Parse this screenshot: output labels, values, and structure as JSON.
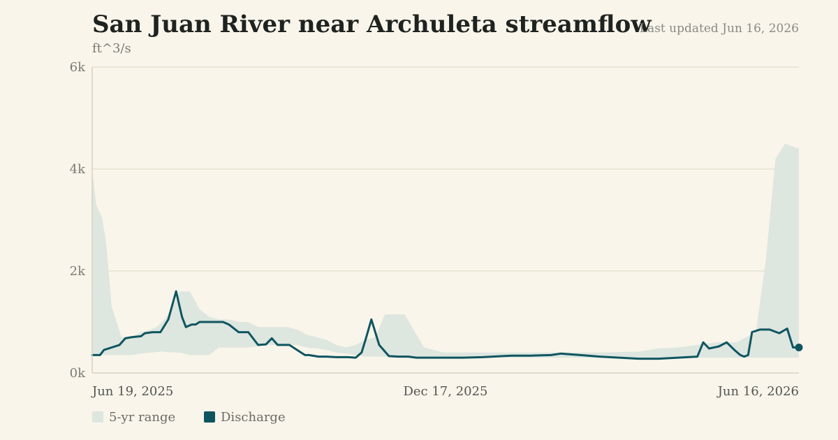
{
  "header": {
    "title": "San Juan River near Archuleta streamflow",
    "updated": "Last updated Jun 16, 2026",
    "unit": "ft^3/s"
  },
  "legend": {
    "range_label": "5-yr range",
    "discharge_label": "Discharge"
  },
  "colors": {
    "background": "#f9f5eb",
    "range_fill": "#dde6df",
    "discharge_line": "#0f5560",
    "grid": "#e7e1d0"
  },
  "chart_data": {
    "type": "area",
    "title": "San Juan River near Archuleta streamflow",
    "ylabel": "ft^3/s",
    "xlabel": "",
    "ylim": [
      0,
      6000
    ],
    "yticks": [
      0,
      2000,
      4000,
      6000
    ],
    "ytick_labels": [
      "0k",
      "2k",
      "4k",
      "6k"
    ],
    "xlim": [
      0,
      362
    ],
    "xticks": [
      0,
      181,
      362
    ],
    "xtick_labels": [
      "Jun 19, 2025",
      "Dec 17, 2025",
      "Jun 16, 2026"
    ],
    "grid": true,
    "legend_position": "bottom-left",
    "series": [
      {
        "name": "5-yr range",
        "type": "band",
        "x": [
          0,
          2,
          5,
          7,
          10,
          15,
          20,
          25,
          30,
          33,
          36,
          40,
          45,
          50,
          55,
          60,
          65,
          70,
          75,
          80,
          85,
          90,
          95,
          100,
          105,
          110,
          115,
          120,
          125,
          130,
          135,
          140,
          145,
          150,
          155,
          160,
          170,
          180,
          200,
          230,
          260,
          280,
          290,
          300,
          310,
          320,
          325,
          330,
          335,
          340,
          345,
          350,
          355,
          360,
          362
        ],
        "low": [
          350,
          350,
          350,
          350,
          350,
          350,
          350,
          380,
          400,
          410,
          420,
          400,
          400,
          350,
          350,
          350,
          500,
          500,
          500,
          500,
          520,
          550,
          550,
          550,
          550,
          500,
          480,
          450,
          400,
          380,
          350,
          320,
          320,
          320,
          300,
          300,
          300,
          300,
          300,
          300,
          300,
          300,
          300,
          300,
          300,
          300,
          300,
          300,
          300,
          300,
          300,
          300,
          300,
          300,
          300
        ],
        "high": [
          4000,
          3300,
          3050,
          2600,
          1300,
          700,
          700,
          800,
          850,
          900,
          1000,
          1200,
          1600,
          1600,
          1250,
          1100,
          1050,
          1050,
          1000,
          1000,
          900,
          900,
          900,
          900,
          850,
          750,
          700,
          650,
          550,
          500,
          550,
          650,
          700,
          1150,
          1150,
          1150,
          500,
          400,
          400,
          400,
          400,
          420,
          480,
          500,
          550,
          600,
          600,
          600,
          700,
          800,
          2200,
          4200,
          4500,
          4420,
          4400
        ]
      },
      {
        "name": "Discharge",
        "type": "line",
        "x": [
          0,
          4,
          6,
          10,
          14,
          17,
          20,
          25,
          27,
          31,
          35,
          39,
          43,
          46,
          48,
          51,
          53,
          55,
          59,
          63,
          67,
          70,
          75,
          80,
          85,
          89,
          92,
          95,
          98,
          101,
          105,
          109,
          111,
          116,
          120,
          125,
          131,
          135,
          138,
          140,
          143,
          147,
          152,
          157,
          162,
          166,
          170,
          173,
          176,
          181,
          190,
          200,
          210,
          215,
          225,
          235,
          240,
          250,
          260,
          270,
          280,
          290,
          300,
          310,
          313,
          316,
          321,
          325,
          329,
          332,
          334,
          336,
          338,
          342,
          347,
          352,
          356,
          359,
          362
        ],
        "y": [
          350,
          350,
          450,
          500,
          550,
          680,
          700,
          720,
          780,
          800,
          800,
          1050,
          1600,
          1100,
          900,
          950,
          950,
          1000,
          1000,
          1000,
          1000,
          950,
          800,
          800,
          550,
          560,
          680,
          550,
          550,
          550,
          450,
          350,
          350,
          320,
          320,
          310,
          310,
          300,
          400,
          650,
          1050,
          550,
          330,
          320,
          320,
          300,
          300,
          300,
          300,
          300,
          300,
          310,
          330,
          340,
          340,
          350,
          380,
          350,
          320,
          300,
          280,
          280,
          300,
          320,
          600,
          480,
          520,
          600,
          450,
          350,
          320,
          350,
          800,
          850,
          850,
          780,
          870,
          500,
          500
        ]
      }
    ]
  }
}
